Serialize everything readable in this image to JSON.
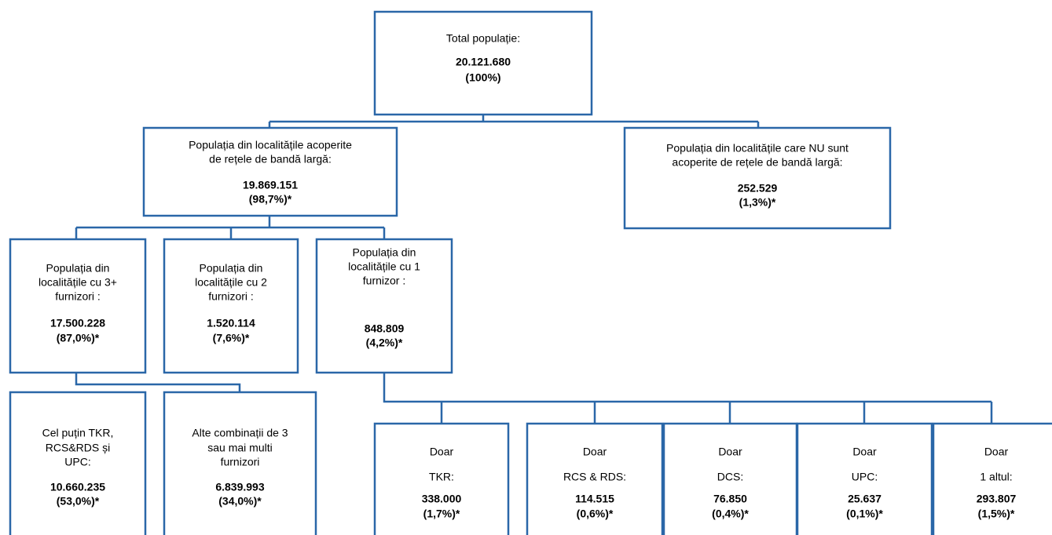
{
  "nodes": [
    {
      "label": [
        "Total populație:"
      ],
      "value": "20.121.680",
      "share": "(100%)"
    },
    {
      "label": [
        "Populația din localitățile acoperite",
        "de rețele de bandă largă:"
      ],
      "value": "19.869.151",
      "share": "(98,7%)*"
    },
    {
      "label": [
        "Populația din localitățile care NU sunt",
        "acoperite de rețele de bandă largă:"
      ],
      "value": "252.529",
      "share": "(1,3%)*"
    },
    {
      "label": [
        "Populația din",
        "localitățile cu 3+",
        "furnizori :"
      ],
      "value": "17.500.228",
      "share": "(87,0%)*"
    },
    {
      "label": [
        "Populația din",
        "localitățile cu 2",
        "furnizori :"
      ],
      "value": "1.520.114",
      "share": "(7,6%)*"
    },
    {
      "label": [
        "Populația din",
        "localitățile cu 1",
        "furnizor :"
      ],
      "value": "848.809",
      "share": "(4,2%)*"
    },
    {
      "label": [
        "Cel puțin TKR,",
        "RCS&RDS și",
        "UPC:"
      ],
      "value": "10.660.235",
      "share": "(53,0%)*"
    },
    {
      "label": [
        "Alte combinații de 3",
        "sau mai multi",
        "furnizori"
      ],
      "value": "6.839.993",
      "share": "(34,0%)*"
    },
    {
      "label": [
        "Doar",
        "TKR:"
      ],
      "value": "338.000",
      "share": "(1,7%)*"
    },
    {
      "label": [
        "Doar",
        "RCS & RDS:"
      ],
      "value": "114.515",
      "share": "(0,6%)*"
    },
    {
      "label": [
        "Doar",
        "DCS:"
      ],
      "value": "76.850",
      "share": "(0,4%)*"
    },
    {
      "label": [
        "Doar",
        "UPC:"
      ],
      "value": "25.637",
      "share": "(0,1%)*"
    },
    {
      "label": [
        "Doar",
        "1 altul:"
      ],
      "value": "293.807",
      "share": "(1,5%)*"
    }
  ]
}
